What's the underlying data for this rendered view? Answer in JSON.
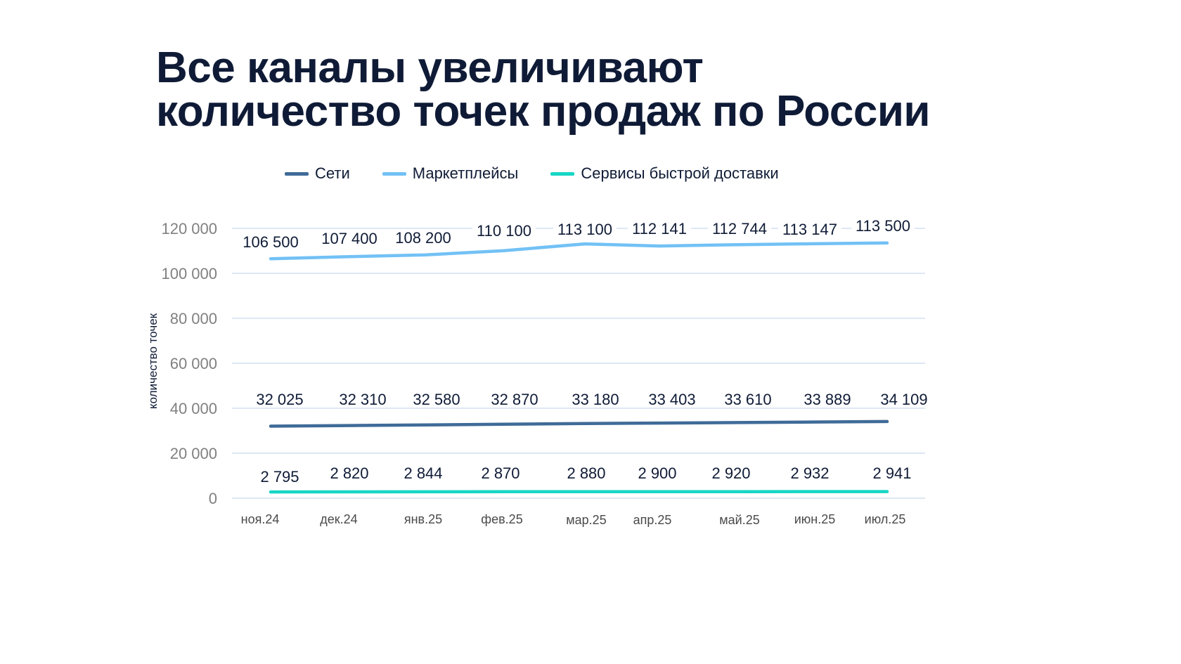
{
  "title": {
    "line1": "Все каналы увеличивают",
    "line2": "количество точек продаж по России"
  },
  "legend": [
    {
      "label": "Сети",
      "color": "#3f6b98"
    },
    {
      "label": "Маркетплейсы",
      "color": "#72c1f5"
    },
    {
      "label": "Сервисы быстрой доставки",
      "color": "#17d6c4"
    }
  ],
  "chart_data": {
    "type": "line",
    "title": "Все каналы увеличивают количество точек продаж по России",
    "xlabel": "",
    "ylabel": "количество точек",
    "ylim": [
      0,
      120000
    ],
    "yticks": [
      0,
      20000,
      40000,
      60000,
      80000,
      100000,
      120000
    ],
    "ytick_labels": [
      "0",
      "20 000",
      "40 000",
      "60 000",
      "80 000",
      "100 000",
      "120 000"
    ],
    "grid": true,
    "legend_position": "top",
    "categories": [
      "ноя.24",
      "дек.24",
      "янв.25",
      "фев.25",
      "мар.25",
      "апр.25",
      "май.25",
      "июн.25",
      "июл.25"
    ],
    "series": [
      {
        "name": "Сети",
        "color": "#3f6b98",
        "values": [
          32025,
          32310,
          32580,
          32870,
          33180,
          33403,
          33610,
          33889,
          34109
        ],
        "labels": [
          "32 025",
          "32 310",
          "32 580",
          "32 870",
          "33 180",
          "33 403",
          "33 610",
          "33 889",
          "34 109"
        ]
      },
      {
        "name": "Маркетплейсы",
        "color": "#72c1f5",
        "values": [
          106500,
          107400,
          108200,
          110100,
          113100,
          112141,
          112744,
          113147,
          113500
        ],
        "labels": [
          "106 500",
          "107 400",
          "108 200",
          "110 100",
          "113 100",
          "112 141",
          "112 744",
          "113 147",
          "113 500"
        ]
      },
      {
        "name": "Сервисы быстрой доставки",
        "color": "#17d6c4",
        "values": [
          2795,
          2820,
          2844,
          2870,
          2880,
          2900,
          2920,
          2932,
          2941
        ],
        "labels": [
          "2 795",
          "2 820",
          "2 844",
          "2 870",
          "2 880",
          "2 900",
          "2 920",
          "2 932",
          "2 941"
        ]
      }
    ]
  }
}
